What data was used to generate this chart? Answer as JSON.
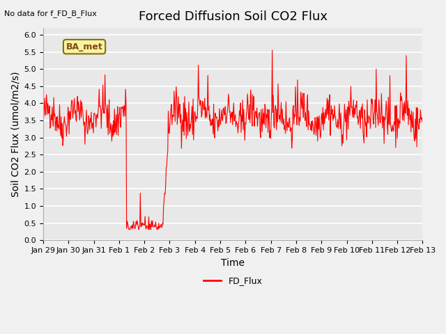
{
  "title": "Forced Diffusion Soil CO2 Flux",
  "no_data_label": "No data for f_FD_B_Flux",
  "xlabel": "Time",
  "ylabel": "Soil CO2 Flux (umol/m2/s)",
  "ylim": [
    0.0,
    6.2
  ],
  "yticks": [
    0.0,
    0.5,
    1.0,
    1.5,
    2.0,
    2.5,
    3.0,
    3.5,
    4.0,
    4.5,
    5.0,
    5.5,
    6.0
  ],
  "legend_label": "FD_Flux",
  "legend_color": "#ff0000",
  "plot_bg_color": "#e8e8e8",
  "fig_bg_color": "#f0f0f0",
  "line_color": "#ff0000",
  "ba_met_label": "BA_met",
  "title_fontsize": 13,
  "axis_label_fontsize": 10,
  "tick_label_fontsize": 8,
  "x_tick_labels": [
    "Jan 29",
    "Jan 30",
    "Jan 31",
    "Feb 1",
    "Feb 2",
    "Feb 3",
    "Feb 4",
    "Feb 5",
    "Feb 6",
    "Feb 7",
    "Feb 8",
    "Feb 9",
    "Feb 10",
    "Feb 11",
    "Feb 12",
    "Feb 13"
  ],
  "n_days": 15,
  "pts_per_day": 48,
  "seed": 42
}
